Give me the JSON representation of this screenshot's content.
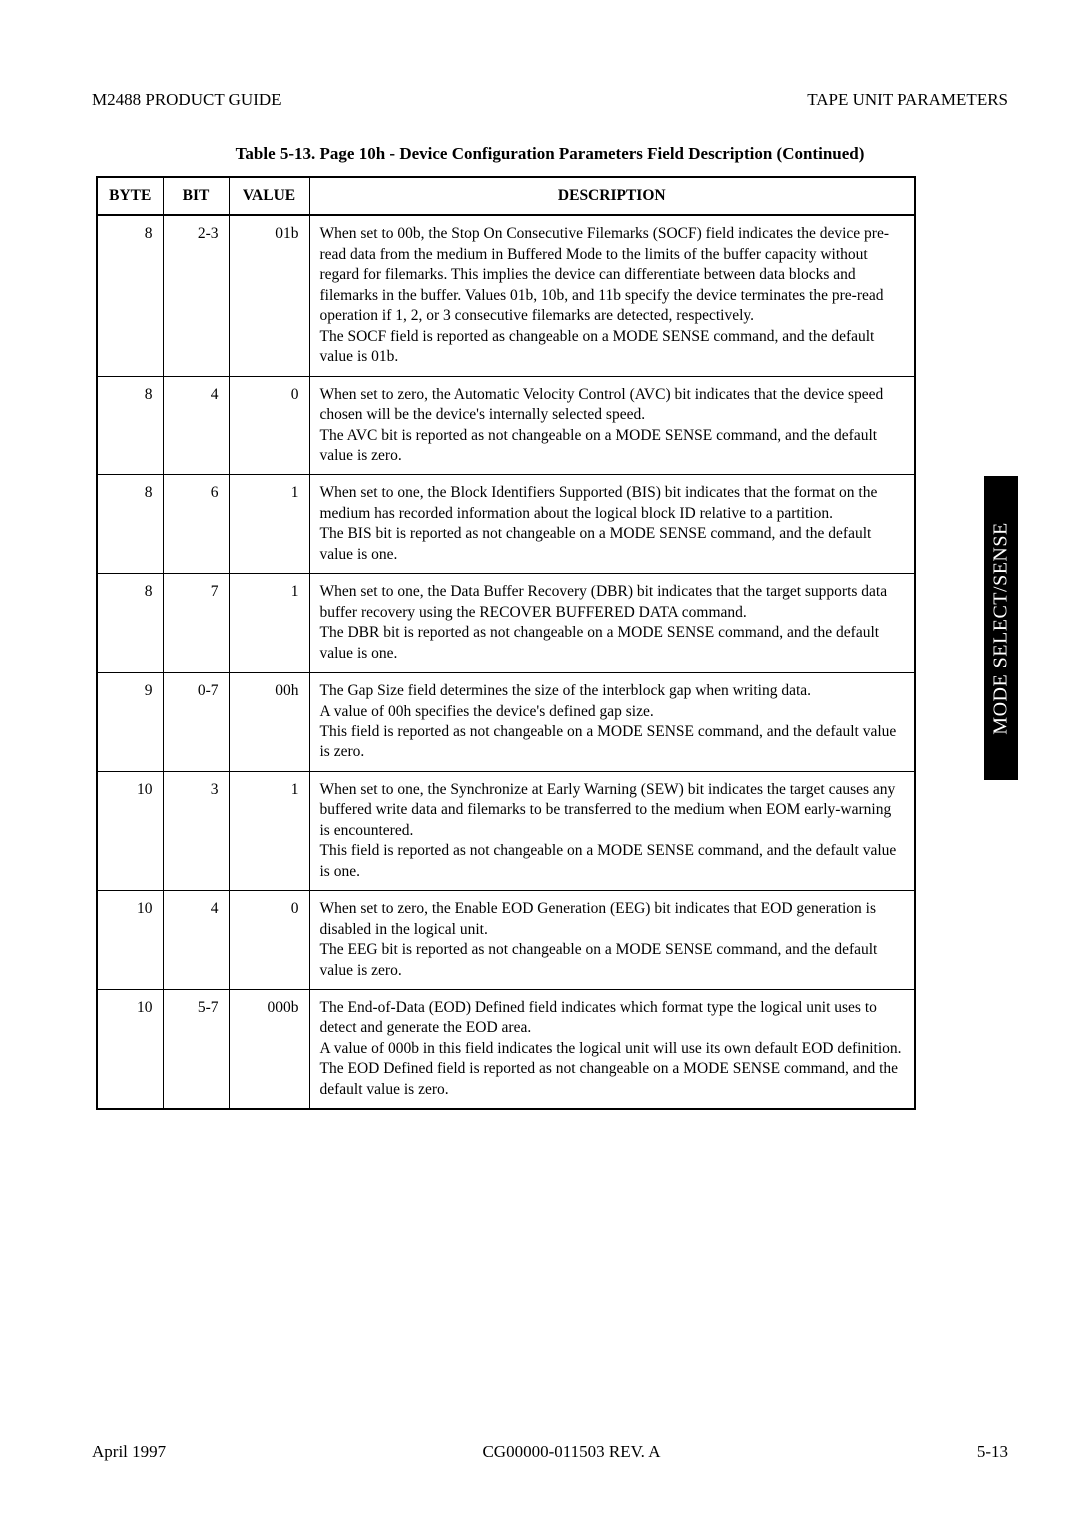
{
  "header": {
    "left": "M2488 PRODUCT GUIDE",
    "right": "TAPE UNIT PARAMETERS"
  },
  "table": {
    "caption": "Table 5-13.  Page 10h - Device Configuration Parameters Field Description  (Continued)",
    "headers": {
      "byte": "BYTE",
      "bit": "BIT",
      "value": "VALUE",
      "desc": "DESCRIPTION"
    },
    "rows": [
      {
        "byte": "8",
        "bit": "2-3",
        "value": "01b",
        "desc": "When set to 00b, the Stop On Consecutive Filemarks (SOCF) field indicates the device pre-read data from the medium in Buffered Mode to the limits of the buffer capacity without regard for filemarks. This implies the device can differentiate between data blocks and filemarks in the buffer. Values 01b, 10b, and 11b specify the device terminates the pre-read operation if 1, 2, or 3 consecutive filemarks are detected, respectively.\nThe SOCF field is reported as changeable on a MODE SENSE command, and the default value is 01b."
      },
      {
        "byte": "8",
        "bit": "4",
        "value": "0",
        "desc": "When set to zero, the Automatic Velocity Control (AVC) bit indicates that the device speed chosen will be the device's internally selected speed.\nThe AVC bit is reported as not changeable on a MODE SENSE command, and the default value is zero."
      },
      {
        "byte": "8",
        "bit": "6",
        "value": "1",
        "desc": "When set to one, the Block Identifiers Supported (BIS) bit indicates that the format on the medium has recorded information about the logical block ID relative to a partition.\nThe BIS bit is reported as not changeable on a MODE SENSE command, and the default value is one."
      },
      {
        "byte": "8",
        "bit": "7",
        "value": "1",
        "desc": "When set to one, the Data Buffer Recovery (DBR) bit indicates that the target supports data buffer recovery using the RECOVER BUFFERED DATA command.\nThe DBR bit is reported as not changeable on a MODE SENSE command, and the default value is one."
      },
      {
        "byte": "9",
        "bit": "0-7",
        "value": "00h",
        "desc": "The Gap Size field determines the size of the interblock gap when writing data.\nA value of 00h specifies the device's defined gap size.\nThis field is reported as not changeable on a MODE SENSE command, and the default value is zero."
      },
      {
        "byte": "10",
        "bit": "3",
        "value": "1",
        "desc": "When set to one, the Synchronize at Early Warning (SEW) bit indicates the target causes any buffered write data and filemarks to be transferred to the medium when EOM early-warning is encountered.\nThis field is reported as not changeable on a MODE SENSE command, and the default value is one."
      },
      {
        "byte": "10",
        "bit": "4",
        "value": "0",
        "desc": "When set to zero, the Enable EOD Generation (EEG) bit indicates that EOD generation is disabled in the logical unit.\nThe EEG bit is reported as not changeable on a MODE SENSE command, and the default value is zero."
      },
      {
        "byte": "10",
        "bit": "5-7",
        "value": "000b",
        "desc": "The End-of-Data (EOD) Defined field indicates which format type the logical unit uses to detect and generate the EOD area.\nA value of 000b in this field indicates the logical unit will use its own default EOD definition.\nThe EOD Defined field is reported as not changeable on a MODE SENSE command, and the default value is zero."
      }
    ]
  },
  "sideTab": "MODE SELECT/SENSE",
  "footer": {
    "left": "April 1997",
    "center": "CG00000-011503 REV. A",
    "right": "5-13"
  }
}
